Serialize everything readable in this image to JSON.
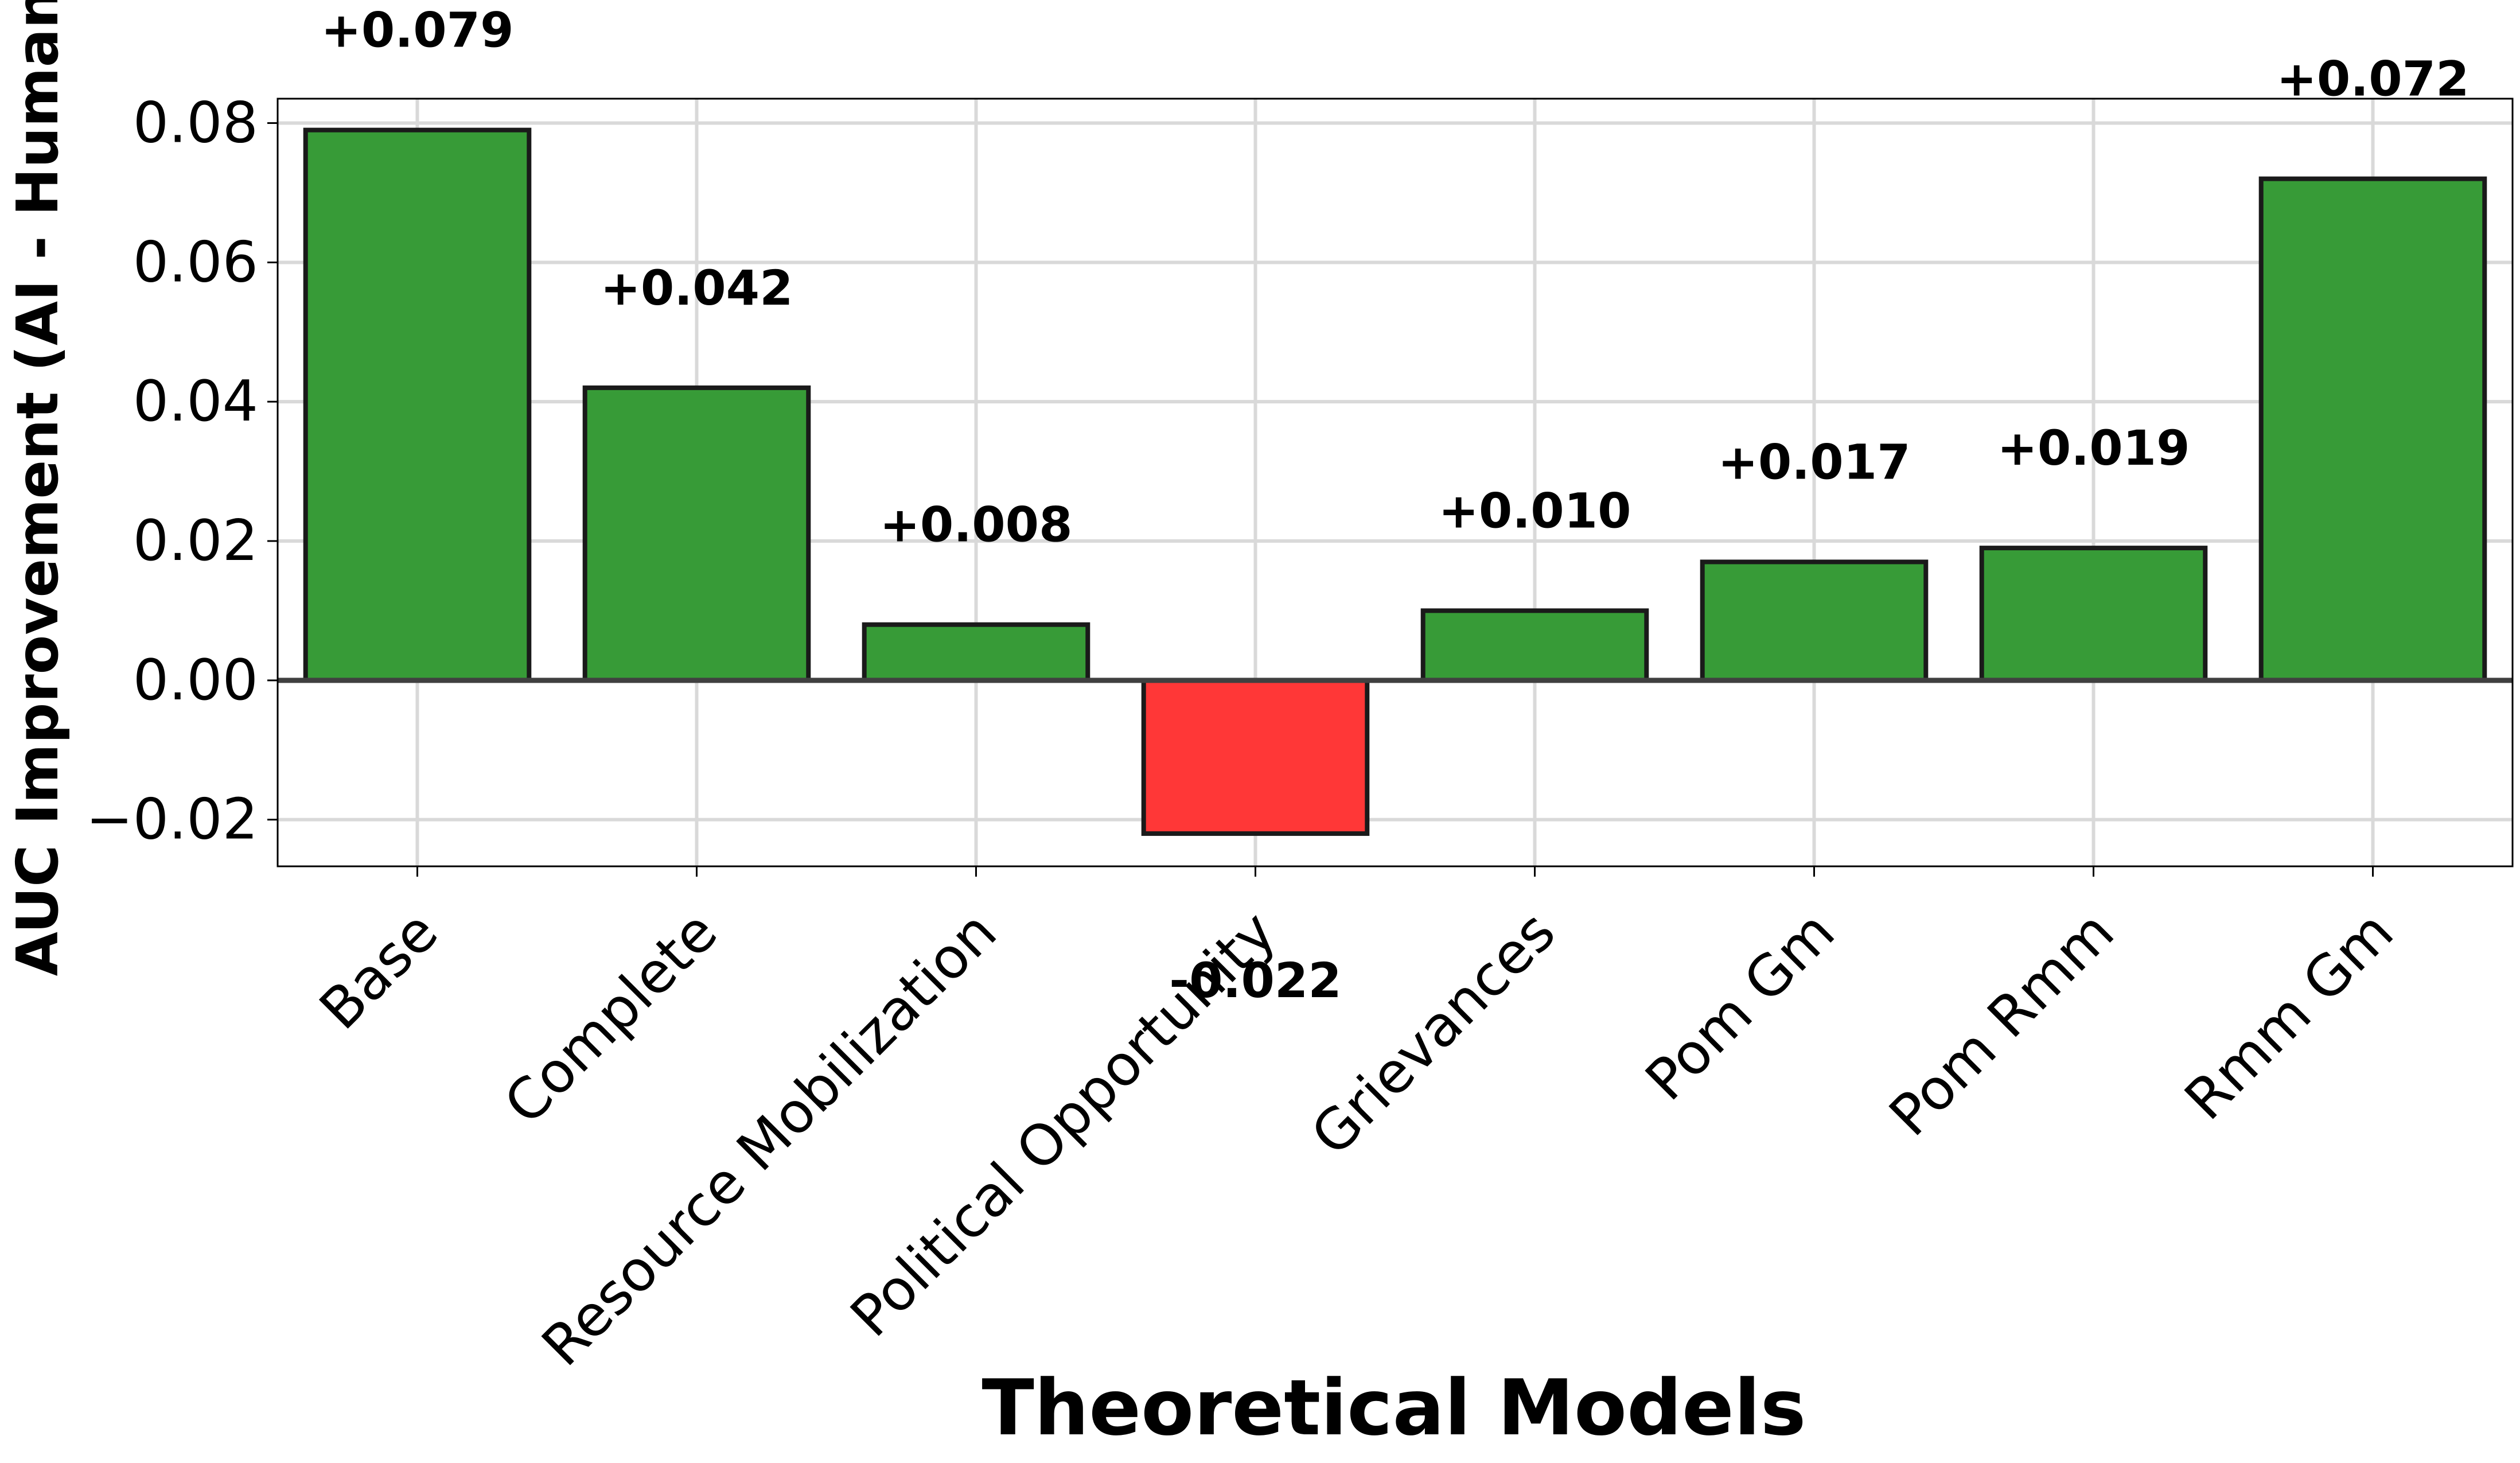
{
  "chart_data": {
    "type": "bar",
    "title": "",
    "xlabel": "Theoretical Models",
    "ylabel": "AUC Improvement (AI - Human",
    "categories": [
      "Base",
      "Complete",
      "Resource Mobilization",
      "Political Opportunity",
      "Grievances",
      "Pom Gm",
      "Pom Rmm",
      "Rmm Gm"
    ],
    "values": [
      0.079,
      0.042,
      0.008,
      -0.022,
      0.01,
      0.017,
      0.019,
      0.072
    ],
    "value_labels": [
      "+0.079",
      "+0.042",
      "+0.008",
      "-0.022",
      "+0.010",
      "+0.017",
      "+0.019",
      "+0.072"
    ],
    "yticks": [
      -0.02,
      0.0,
      0.02,
      0.04,
      0.06,
      0.08
    ],
    "ytick_labels": [
      "−0.02",
      "0.00",
      "0.02",
      "0.04",
      "0.06",
      "0.08"
    ],
    "ylim": [
      -0.0267,
      0.0835
    ],
    "grid": true,
    "legend": "none",
    "colors": {
      "positive": "#339933",
      "negative": "#ff3333",
      "bar_edge": "#1a1a1a",
      "zero_line": "#404040",
      "grid": "#d9d9d9"
    }
  }
}
